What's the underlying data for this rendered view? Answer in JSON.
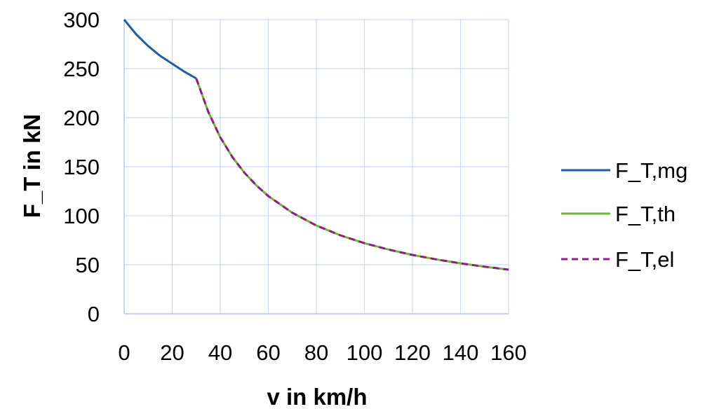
{
  "chart_data": {
    "type": "line",
    "title": "",
    "xlabel": "v in km/h",
    "ylabel": "F_T in kN",
    "xlim": [
      0,
      160
    ],
    "ylim": [
      0,
      300
    ],
    "x_ticks": [
      0,
      20,
      40,
      60,
      80,
      100,
      120,
      140,
      160
    ],
    "y_ticks": [
      0,
      50,
      100,
      150,
      200,
      250,
      300
    ],
    "x_tick_labels": [
      "0",
      "20",
      "40",
      "60",
      "80",
      "100",
      "120",
      "140",
      "160"
    ],
    "y_tick_labels": [
      "0",
      "50",
      "100",
      "150",
      "200",
      "250",
      "300"
    ],
    "grid": true,
    "legend_position": "right",
    "series": [
      {
        "name": "F_T,mg",
        "color": "#1f5f9e",
        "dash": "solid",
        "x": [
          0,
          5,
          10,
          15,
          20,
          25,
          30
        ],
        "y": [
          300,
          285,
          273,
          263,
          255,
          247,
          240
        ]
      },
      {
        "name": "F_T,th",
        "color": "#72b33a",
        "dash": "solid",
        "x": [
          30,
          35,
          40,
          45,
          50,
          55,
          60,
          70,
          80,
          90,
          100,
          110,
          120,
          130,
          140,
          150,
          160
        ],
        "y": [
          240,
          206,
          180,
          160,
          144,
          131,
          120,
          103,
          90,
          80,
          72,
          65.5,
          60,
          55.4,
          51.4,
          48,
          45
        ]
      },
      {
        "name": "F_T,el",
        "color": "#8e1f7e",
        "dash": "dashed",
        "x": [
          30,
          35,
          40,
          45,
          50,
          55,
          60,
          70,
          80,
          90,
          100,
          110,
          120,
          130,
          140,
          150,
          160
        ],
        "y": [
          240,
          206,
          180,
          160,
          144,
          131,
          120,
          103,
          90,
          80,
          72,
          65.5,
          60,
          55.4,
          51.4,
          48,
          45
        ]
      }
    ]
  }
}
